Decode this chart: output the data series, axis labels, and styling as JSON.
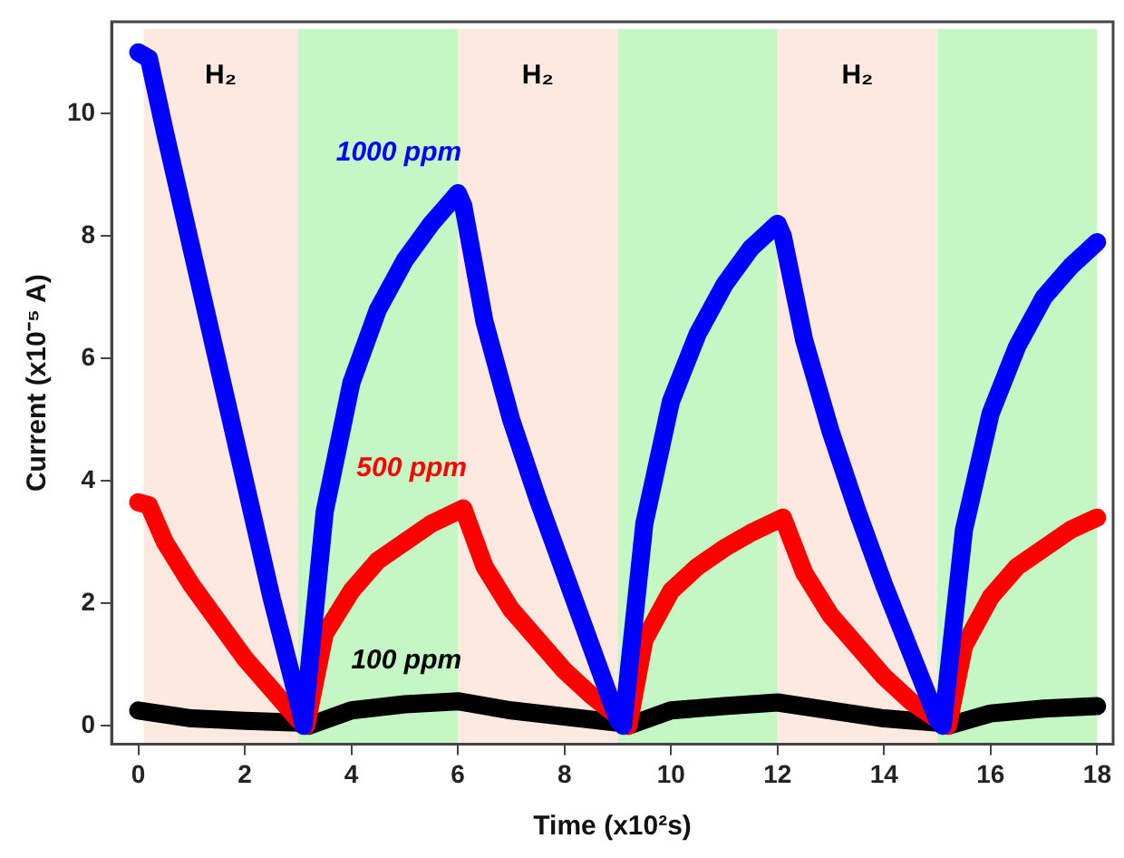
{
  "chart_data": {
    "type": "line",
    "xlabel": "Time (x10²s)",
    "ylabel": "Current (x10⁻⁵ A)",
    "xlim": [
      -0.5,
      18.3
    ],
    "ylim": [
      -0.3,
      11.5
    ],
    "xticks": [
      0,
      2,
      4,
      6,
      8,
      10,
      12,
      14,
      16,
      18
    ],
    "yticks": [
      0,
      2,
      4,
      6,
      8,
      10
    ],
    "grid": false,
    "legend": false,
    "marker": "none",
    "line_style": "solid",
    "bands": [
      {
        "axis": "x",
        "from": 0.1,
        "to": 3,
        "label": "H₂",
        "color": "#fde9e0"
      },
      {
        "axis": "x",
        "from": 3,
        "to": 6,
        "color": "#c4f7c4"
      },
      {
        "axis": "x",
        "from": 6,
        "to": 9,
        "label": "H₂",
        "color": "#fde9e0"
      },
      {
        "axis": "x",
        "from": 9,
        "to": 12,
        "color": "#c4f7c4"
      },
      {
        "axis": "x",
        "from": 12,
        "to": 15,
        "label": "H₂",
        "color": "#fde9e0"
      },
      {
        "axis": "x",
        "from": 15,
        "to": 18,
        "color": "#c4f7c4"
      }
    ],
    "series": [
      {
        "name": "1000 ppm",
        "color": "#0000ff",
        "x": [
          0,
          0.2,
          0.5,
          1,
          1.5,
          2,
          2.5,
          3,
          3.1,
          3.5,
          4,
          4.5,
          5,
          5.5,
          6,
          6.1,
          6.5,
          7,
          7.5,
          8,
          8.5,
          9,
          9.1,
          9.5,
          10,
          10.5,
          11,
          11.5,
          12,
          12.1,
          12.5,
          13,
          13.5,
          14,
          14.5,
          15,
          15.1,
          15.5,
          16,
          16.5,
          17,
          17.5,
          18
        ],
        "values": [
          11,
          10.9,
          9.7,
          7.8,
          5.9,
          4.0,
          2.1,
          0.4,
          0,
          3.5,
          5.6,
          6.8,
          7.6,
          8.2,
          8.7,
          8.5,
          6.6,
          5.0,
          3.7,
          2.5,
          1.3,
          0.1,
          0,
          3.3,
          5.3,
          6.4,
          7.2,
          7.8,
          8.2,
          8.0,
          6.3,
          4.8,
          3.5,
          2.3,
          1.2,
          0.1,
          0,
          3.2,
          5.1,
          6.2,
          7.0,
          7.5,
          7.9
        ]
      },
      {
        "name": "500 ppm",
        "color": "#ff0000",
        "x": [
          0,
          0.2,
          0.5,
          1,
          1.5,
          2,
          2.5,
          3,
          3.15,
          3.5,
          4,
          4.5,
          5,
          5.5,
          6.1,
          6.5,
          7,
          7.5,
          8,
          8.5,
          9,
          9.2,
          9.5,
          10,
          10.5,
          11,
          11.5,
          12.1,
          12.5,
          13,
          13.5,
          14,
          14.5,
          15,
          15.2,
          15.5,
          16,
          16.5,
          17,
          17.5,
          18
        ],
        "values": [
          3.65,
          3.6,
          3.0,
          2.3,
          1.7,
          1.1,
          0.6,
          0.1,
          0,
          1.5,
          2.2,
          2.7,
          3.0,
          3.3,
          3.55,
          2.6,
          1.9,
          1.4,
          0.9,
          0.5,
          0.15,
          0,
          1.4,
          2.2,
          2.6,
          2.9,
          3.15,
          3.4,
          2.5,
          1.8,
          1.3,
          0.8,
          0.4,
          0.1,
          0,
          1.3,
          2.1,
          2.6,
          2.9,
          3.2,
          3.4
        ]
      },
      {
        "name": "100 ppm",
        "color": "#000000",
        "x": [
          0,
          1,
          2,
          3,
          3.2,
          4,
          5,
          6,
          7,
          8,
          9,
          9.2,
          10,
          11,
          12,
          13,
          14,
          15,
          15.2,
          16,
          17,
          18
        ],
        "values": [
          0.25,
          0.12,
          0.08,
          0.05,
          0,
          0.25,
          0.35,
          0.4,
          0.25,
          0.15,
          0.05,
          0,
          0.25,
          0.32,
          0.38,
          0.25,
          0.12,
          0.05,
          0,
          0.2,
          0.28,
          0.32
        ]
      }
    ]
  }
}
